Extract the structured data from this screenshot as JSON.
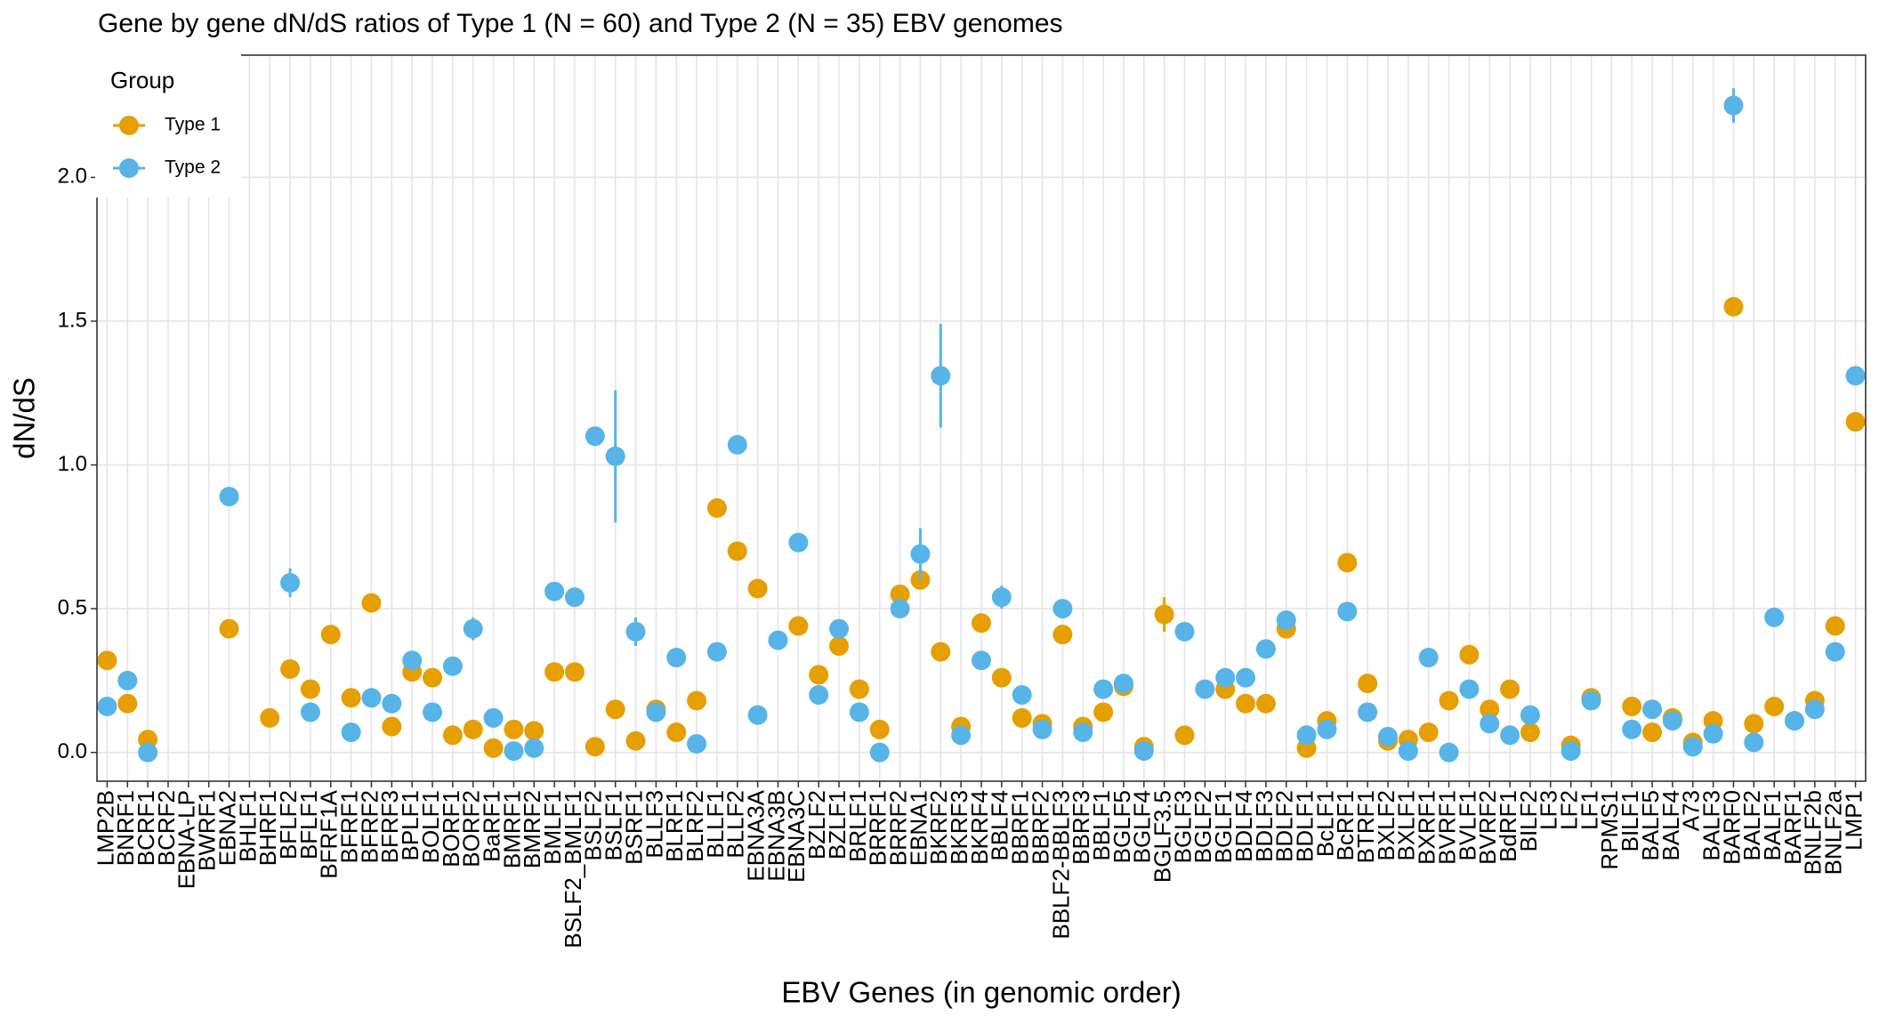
{
  "chart_data": {
    "type": "pointrange",
    "title": "Gene by gene dN/dS ratios of Type 1 (N = 60) and Type 2 (N = 35) EBV genomes",
    "x_label": "EBV Genes (in genomic order)",
    "y_label": "dN/dS",
    "legend_title": "Group",
    "legend_position": "top-left",
    "grid": true,
    "categories": [
      "LMP2B",
      "BNRF1",
      "BCRF1",
      "BCRF2",
      "EBNA-LP",
      "BWRF1",
      "EBNA2",
      "BHLF1",
      "BHRF1",
      "BFLF2",
      "BFLF1",
      "BFRF1A",
      "BFRF1",
      "BFRF2",
      "BFRF3",
      "BPLF1",
      "BOLF1",
      "BORF1",
      "BORF2",
      "BaRF1",
      "BMRF1",
      "BMRF2",
      "BMLF1",
      "BSLF2_BMLF1",
      "BSLF2",
      "BSLF1",
      "BSRF1",
      "BLLF3",
      "BLRF1",
      "BLRF2",
      "BLLF1",
      "BLLF2",
      "EBNA3A",
      "EBNA3B",
      "EBNA3C",
      "BZLF2",
      "BZLF1",
      "BRLF1",
      "BRRF1",
      "BRRF2",
      "EBNA1",
      "BKRF2",
      "BKRF3",
      "BKRF4",
      "BBLF4",
      "BBRF1",
      "BBRF2",
      "BBLF2-BBLF3",
      "BBRF3",
      "BBLF1",
      "BGLF5",
      "BGLF4",
      "BGLF3.5",
      "BGLF3",
      "BGLF2",
      "BGLF1",
      "BDLF4",
      "BDLF3",
      "BDLF2",
      "BDLF1",
      "BcLF1",
      "BcRF1",
      "BTRF1",
      "BXLF2",
      "BXLF1",
      "BXRF1",
      "BVRF1",
      "BVLF1",
      "BVRF2",
      "BdRF1",
      "BILF2",
      "LF3",
      "LF2",
      "LF1",
      "RPMS1",
      "BILF1",
      "BALF5",
      "BALF4",
      "A73",
      "BALF3",
      "BARF0",
      "BALF2",
      "BALF1",
      "BARF1",
      "BNLF2b",
      "BNLF2a",
      "LMP1"
    ],
    "series": [
      {
        "name": "Type 1",
        "color": "#E69F00",
        "values": [
          0.32,
          0.17,
          0.045,
          null,
          null,
          null,
          0.43,
          null,
          0.12,
          0.29,
          0.22,
          0.41,
          0.19,
          0.52,
          0.09,
          0.28,
          0.26,
          0.06,
          0.08,
          0.015,
          0.08,
          0.075,
          0.28,
          0.28,
          0.02,
          0.15,
          0.04,
          0.15,
          0.07,
          0.18,
          0.85,
          0.7,
          0.57,
          null,
          0.44,
          0.27,
          0.37,
          0.22,
          0.08,
          0.55,
          0.6,
          0.35,
          0.09,
          0.45,
          0.26,
          0.12,
          0.1,
          0.41,
          0.09,
          0.14,
          0.23,
          0.02,
          0.48,
          0.06,
          null,
          0.22,
          0.17,
          0.17,
          0.43,
          0.015,
          0.11,
          0.66,
          0.24,
          0.04,
          0.045,
          0.07,
          0.18,
          0.34,
          0.15,
          0.22,
          0.07,
          null,
          0.025,
          0.19,
          null,
          0.16,
          0.07,
          0.12,
          0.035,
          0.11,
          1.55,
          0.1,
          0.16,
          0.11,
          0.18,
          0.44,
          1.15
        ],
        "errors": [
          null,
          null,
          null,
          null,
          null,
          null,
          null,
          null,
          null,
          null,
          null,
          null,
          null,
          null,
          null,
          null,
          null,
          null,
          null,
          null,
          null,
          null,
          null,
          null,
          null,
          null,
          null,
          null,
          null,
          null,
          null,
          null,
          null,
          null,
          null,
          null,
          null,
          null,
          null,
          null,
          null,
          null,
          null,
          null,
          null,
          null,
          null,
          null,
          null,
          null,
          null,
          null,
          0.06,
          null,
          null,
          null,
          null,
          null,
          null,
          null,
          null,
          null,
          null,
          null,
          null,
          null,
          null,
          null,
          null,
          null,
          null,
          null,
          null,
          null,
          null,
          null,
          null,
          null,
          null,
          null,
          null,
          null,
          null,
          null,
          null,
          null,
          null
        ]
      },
      {
        "name": "Type 2",
        "color": "#56B4E9",
        "values": [
          0.16,
          0.25,
          0.0,
          null,
          null,
          null,
          0.89,
          null,
          null,
          0.59,
          0.14,
          null,
          0.07,
          0.19,
          0.17,
          0.32,
          0.14,
          0.3,
          0.43,
          0.12,
          0.005,
          0.015,
          0.56,
          0.54,
          1.1,
          1.03,
          0.42,
          0.14,
          0.33,
          0.03,
          0.35,
          1.07,
          0.13,
          0.39,
          0.73,
          0.2,
          0.43,
          0.14,
          0.0,
          0.5,
          0.69,
          1.31,
          0.06,
          0.32,
          0.54,
          0.2,
          0.08,
          0.5,
          0.07,
          0.22,
          0.24,
          0.005,
          null,
          0.42,
          0.22,
          0.26,
          0.26,
          0.36,
          0.46,
          0.06,
          0.08,
          0.49,
          0.14,
          0.055,
          0.005,
          0.33,
          0.0,
          0.22,
          0.1,
          0.06,
          0.13,
          null,
          0.005,
          0.18,
          null,
          0.08,
          0.15,
          0.11,
          0.02,
          0.065,
          2.25,
          0.035,
          0.47,
          0.11,
          0.15,
          0.35,
          1.31
        ],
        "errors": [
          null,
          null,
          null,
          null,
          null,
          null,
          null,
          null,
          null,
          0.05,
          null,
          null,
          null,
          null,
          null,
          null,
          null,
          null,
          0.04,
          null,
          null,
          null,
          0.03,
          0.03,
          null,
          0.23,
          0.05,
          null,
          null,
          null,
          null,
          null,
          null,
          null,
          null,
          null,
          null,
          null,
          null,
          null,
          0.09,
          0.18,
          null,
          null,
          0.04,
          null,
          null,
          null,
          null,
          null,
          null,
          null,
          null,
          null,
          null,
          null,
          null,
          null,
          null,
          null,
          null,
          null,
          null,
          null,
          null,
          null,
          null,
          null,
          null,
          null,
          null,
          null,
          null,
          null,
          null,
          null,
          null,
          null,
          null,
          null,
          0.06,
          null,
          null,
          null,
          null,
          null,
          null
        ]
      }
    ],
    "ylim": [
      -0.1,
      2.425
    ],
    "yticks": [
      {
        "value": 0,
        "label": "0.0"
      },
      0.5,
      {
        "value": 1,
        "label": "1.0"
      },
      1.5,
      {
        "value": 2,
        "label": "2.0"
      }
    ]
  }
}
